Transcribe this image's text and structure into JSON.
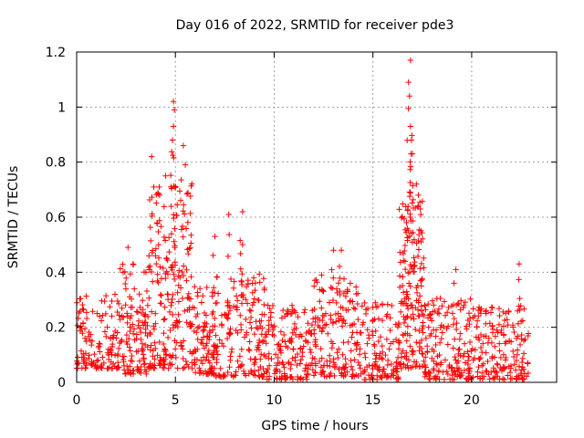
{
  "chart_data": {
    "type": "scatter",
    "title": "Day 016 of 2022, SRMTID for receiver pde3",
    "xlabel": "GPS time / hours",
    "ylabel": "SRMTID / TECUs",
    "xlim": [
      0,
      24.3
    ],
    "ylim": [
      0,
      1.2
    ],
    "x_ticks": [
      0,
      5,
      10,
      15,
      20
    ],
    "x_tick_labels": [
      "0",
      "5",
      "10",
      "15",
      "20"
    ],
    "y_ticks": [
      0,
      0.2,
      0.4,
      0.6,
      0.8,
      1.0,
      1.2
    ],
    "y_tick_labels": [
      "0",
      "0.2",
      "0.4",
      "0.6",
      "0.8",
      "1",
      "1.2"
    ],
    "grid": true,
    "marker": "+",
    "series": [
      {
        "name": "SRMTID pde3",
        "color": "#ff0000",
        "x_range": [
          0,
          22.9
        ],
        "peaks": [
          {
            "x": 4.9,
            "y": 1.02
          },
          {
            "x": 4.95,
            "y": 0.99
          },
          {
            "x": 4.9,
            "y": 0.93
          },
          {
            "x": 4.85,
            "y": 0.88
          },
          {
            "x": 3.8,
            "y": 0.82
          },
          {
            "x": 5.4,
            "y": 0.86
          },
          {
            "x": 5.5,
            "y": 0.79
          },
          {
            "x": 4.5,
            "y": 0.75
          },
          {
            "x": 4.2,
            "y": 0.68
          },
          {
            "x": 7.7,
            "y": 0.61
          },
          {
            "x": 8.4,
            "y": 0.62
          },
          {
            "x": 8.4,
            "y": 0.5
          },
          {
            "x": 7.0,
            "y": 0.53
          },
          {
            "x": 16.9,
            "y": 1.17
          },
          {
            "x": 16.8,
            "y": 1.09
          },
          {
            "x": 16.85,
            "y": 1.04
          },
          {
            "x": 16.9,
            "y": 0.93
          },
          {
            "x": 16.95,
            "y": 0.88
          },
          {
            "x": 17.0,
            "y": 0.83
          },
          {
            "x": 17.2,
            "y": 0.72
          },
          {
            "x": 17.3,
            "y": 0.68
          },
          {
            "x": 17.4,
            "y": 0.63
          },
          {
            "x": 16.7,
            "y": 0.58
          },
          {
            "x": 13.0,
            "y": 0.48
          },
          {
            "x": 13.4,
            "y": 0.48
          },
          {
            "x": 12.4,
            "y": 0.39
          },
          {
            "x": 19.2,
            "y": 0.41
          },
          {
            "x": 22.4,
            "y": 0.43
          },
          {
            "x": 2.6,
            "y": 0.49
          }
        ],
        "segments": [
          {
            "x0": 0.0,
            "x1": 2.2,
            "base": 0.05,
            "spread": 0.27,
            "n": 130
          },
          {
            "x0": 2.2,
            "x1": 3.6,
            "base": 0.03,
            "spread": 0.4,
            "n": 110
          },
          {
            "x0": 3.6,
            "x1": 5.9,
            "base": 0.05,
            "spread": 0.68,
            "n": 200
          },
          {
            "x0": 5.9,
            "x1": 7.0,
            "base": 0.03,
            "spread": 0.32,
            "n": 90
          },
          {
            "x0": 7.0,
            "x1": 9.6,
            "base": 0.02,
            "spread": 0.38,
            "n": 170
          },
          {
            "x0": 9.6,
            "x1": 12.0,
            "base": 0.01,
            "spread": 0.27,
            "n": 150
          },
          {
            "x0": 12.0,
            "x1": 14.5,
            "base": 0.02,
            "spread": 0.36,
            "n": 160
          },
          {
            "x0": 14.5,
            "x1": 16.3,
            "base": 0.01,
            "spread": 0.28,
            "n": 110
          },
          {
            "x0": 16.3,
            "x1": 17.6,
            "base": 0.05,
            "spread": 0.62,
            "n": 150
          },
          {
            "x0": 17.6,
            "x1": 20.0,
            "base": 0.01,
            "spread": 0.3,
            "n": 160
          },
          {
            "x0": 20.0,
            "x1": 22.9,
            "base": 0.01,
            "spread": 0.27,
            "n": 170
          }
        ]
      }
    ]
  }
}
